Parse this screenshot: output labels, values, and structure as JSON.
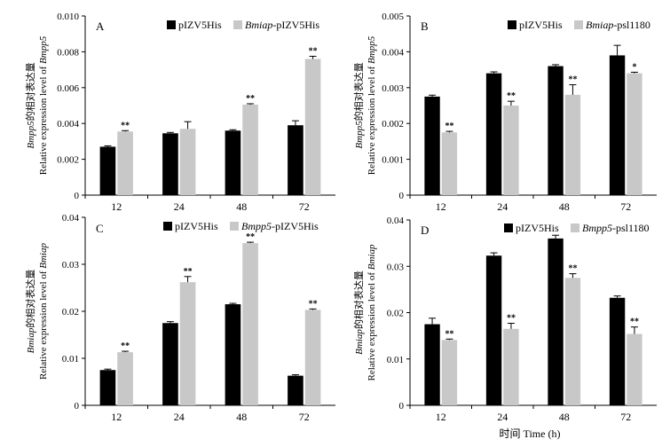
{
  "colors": {
    "series1": "#000000",
    "series2": "#c8c8c8",
    "axis": "#000000"
  },
  "chart_data": [
    {
      "type": "bar",
      "panel_label": "A",
      "categories": [
        "12",
        "24",
        "48",
        "72"
      ],
      "ylim": [
        0,
        0.01
      ],
      "yticks": [
        "0",
        "0.002",
        "0.004",
        "0.006",
        "0.008",
        "0.010"
      ],
      "ylabel_line1": "Bmpp5的相对表达量",
      "ylabel_line2": "Relative expression level of Bmpp5",
      "xlabel": "",
      "legend_position": "top-right",
      "series": [
        {
          "name": "pIZV5His",
          "values": [
            0.0027,
            0.00345,
            0.0036,
            0.0039
          ],
          "errors": [
            5e-05,
            5e-05,
            5e-05,
            0.00025
          ]
        },
        {
          "name": "Bmiap-pIZV5His",
          "values": [
            0.00355,
            0.0037,
            0.00505,
            0.0076
          ],
          "errors": [
            5e-05,
            0.0004,
            5e-05,
            0.00015
          ]
        }
      ],
      "significance": [
        "**",
        "",
        "**",
        "**"
      ]
    },
    {
      "type": "bar",
      "panel_label": "B",
      "categories": [
        "12",
        "24",
        "48",
        "72"
      ],
      "ylim": [
        0,
        0.005
      ],
      "yticks": [
        "0",
        "0.001",
        "0.002",
        "0.003",
        "0.004",
        "0.005"
      ],
      "ylabel_line1": "Bmpp5的相对表达量",
      "ylabel_line2": "Relative expression level of Bmpp5",
      "xlabel": "",
      "legend_position": "top-right",
      "series": [
        {
          "name": "pIZV5His",
          "values": [
            0.00275,
            0.0034,
            0.0036,
            0.0039
          ],
          "errors": [
            4e-05,
            4e-05,
            4e-05,
            0.00028
          ]
        },
        {
          "name": "Bmiap-psl1180",
          "values": [
            0.00175,
            0.0025,
            0.0028,
            0.0034
          ],
          "errors": [
            3e-05,
            0.00012,
            0.00028,
            3e-05
          ]
        }
      ],
      "significance": [
        "**",
        "**",
        "**",
        "*"
      ]
    },
    {
      "type": "bar",
      "panel_label": "C",
      "categories": [
        "12",
        "24",
        "48",
        "72"
      ],
      "ylim": [
        0,
        0.04
      ],
      "yticks": [
        "0",
        "0.01",
        "0.02",
        "0.03",
        "0.04"
      ],
      "ylabel_line1": "Bmiap的相对表达量",
      "ylabel_line2": "Relative expression level of Bmiap",
      "xlabel": "",
      "legend_position": "top-right",
      "series": [
        {
          "name": "pIZV5His",
          "values": [
            0.0075,
            0.0175,
            0.0215,
            0.0063
          ],
          "errors": [
            0.0002,
            0.0003,
            0.0002,
            0.0002
          ]
        },
        {
          "name": "Bmpp5-pIZV5His",
          "values": [
            0.0113,
            0.0262,
            0.0345,
            0.0203
          ],
          "errors": [
            0.0002,
            0.0012,
            0.0002,
            0.0002
          ]
        }
      ],
      "significance": [
        "**",
        "**",
        "**",
        "**"
      ]
    },
    {
      "type": "bar",
      "panel_label": "D",
      "categories": [
        "12",
        "24",
        "48",
        "72"
      ],
      "ylim": [
        0,
        0.04
      ],
      "yticks": [
        "0",
        "0.01",
        "0.02",
        "0.03",
        "0.04"
      ],
      "ylabel_line1": "Bmiap的相对表达量",
      "ylabel_line2": "Relative expression level of Bmiap",
      "xlabel": "时间 Time (h)",
      "legend_position": "top-right",
      "series": [
        {
          "name": "pIZV5His",
          "values": [
            0.0175,
            0.0323,
            0.036,
            0.0232
          ],
          "errors": [
            0.0013,
            0.0006,
            0.0007,
            0.0004
          ]
        },
        {
          "name": "Bmpp5-psl1180",
          "values": [
            0.0141,
            0.0165,
            0.0275,
            0.0154
          ],
          "errors": [
            0.0002,
            0.0012,
            0.0009,
            0.0015
          ]
        }
      ],
      "significance": [
        "**",
        "**",
        "**",
        "**"
      ]
    }
  ],
  "shared_xlabel": "时间 Time (h)"
}
